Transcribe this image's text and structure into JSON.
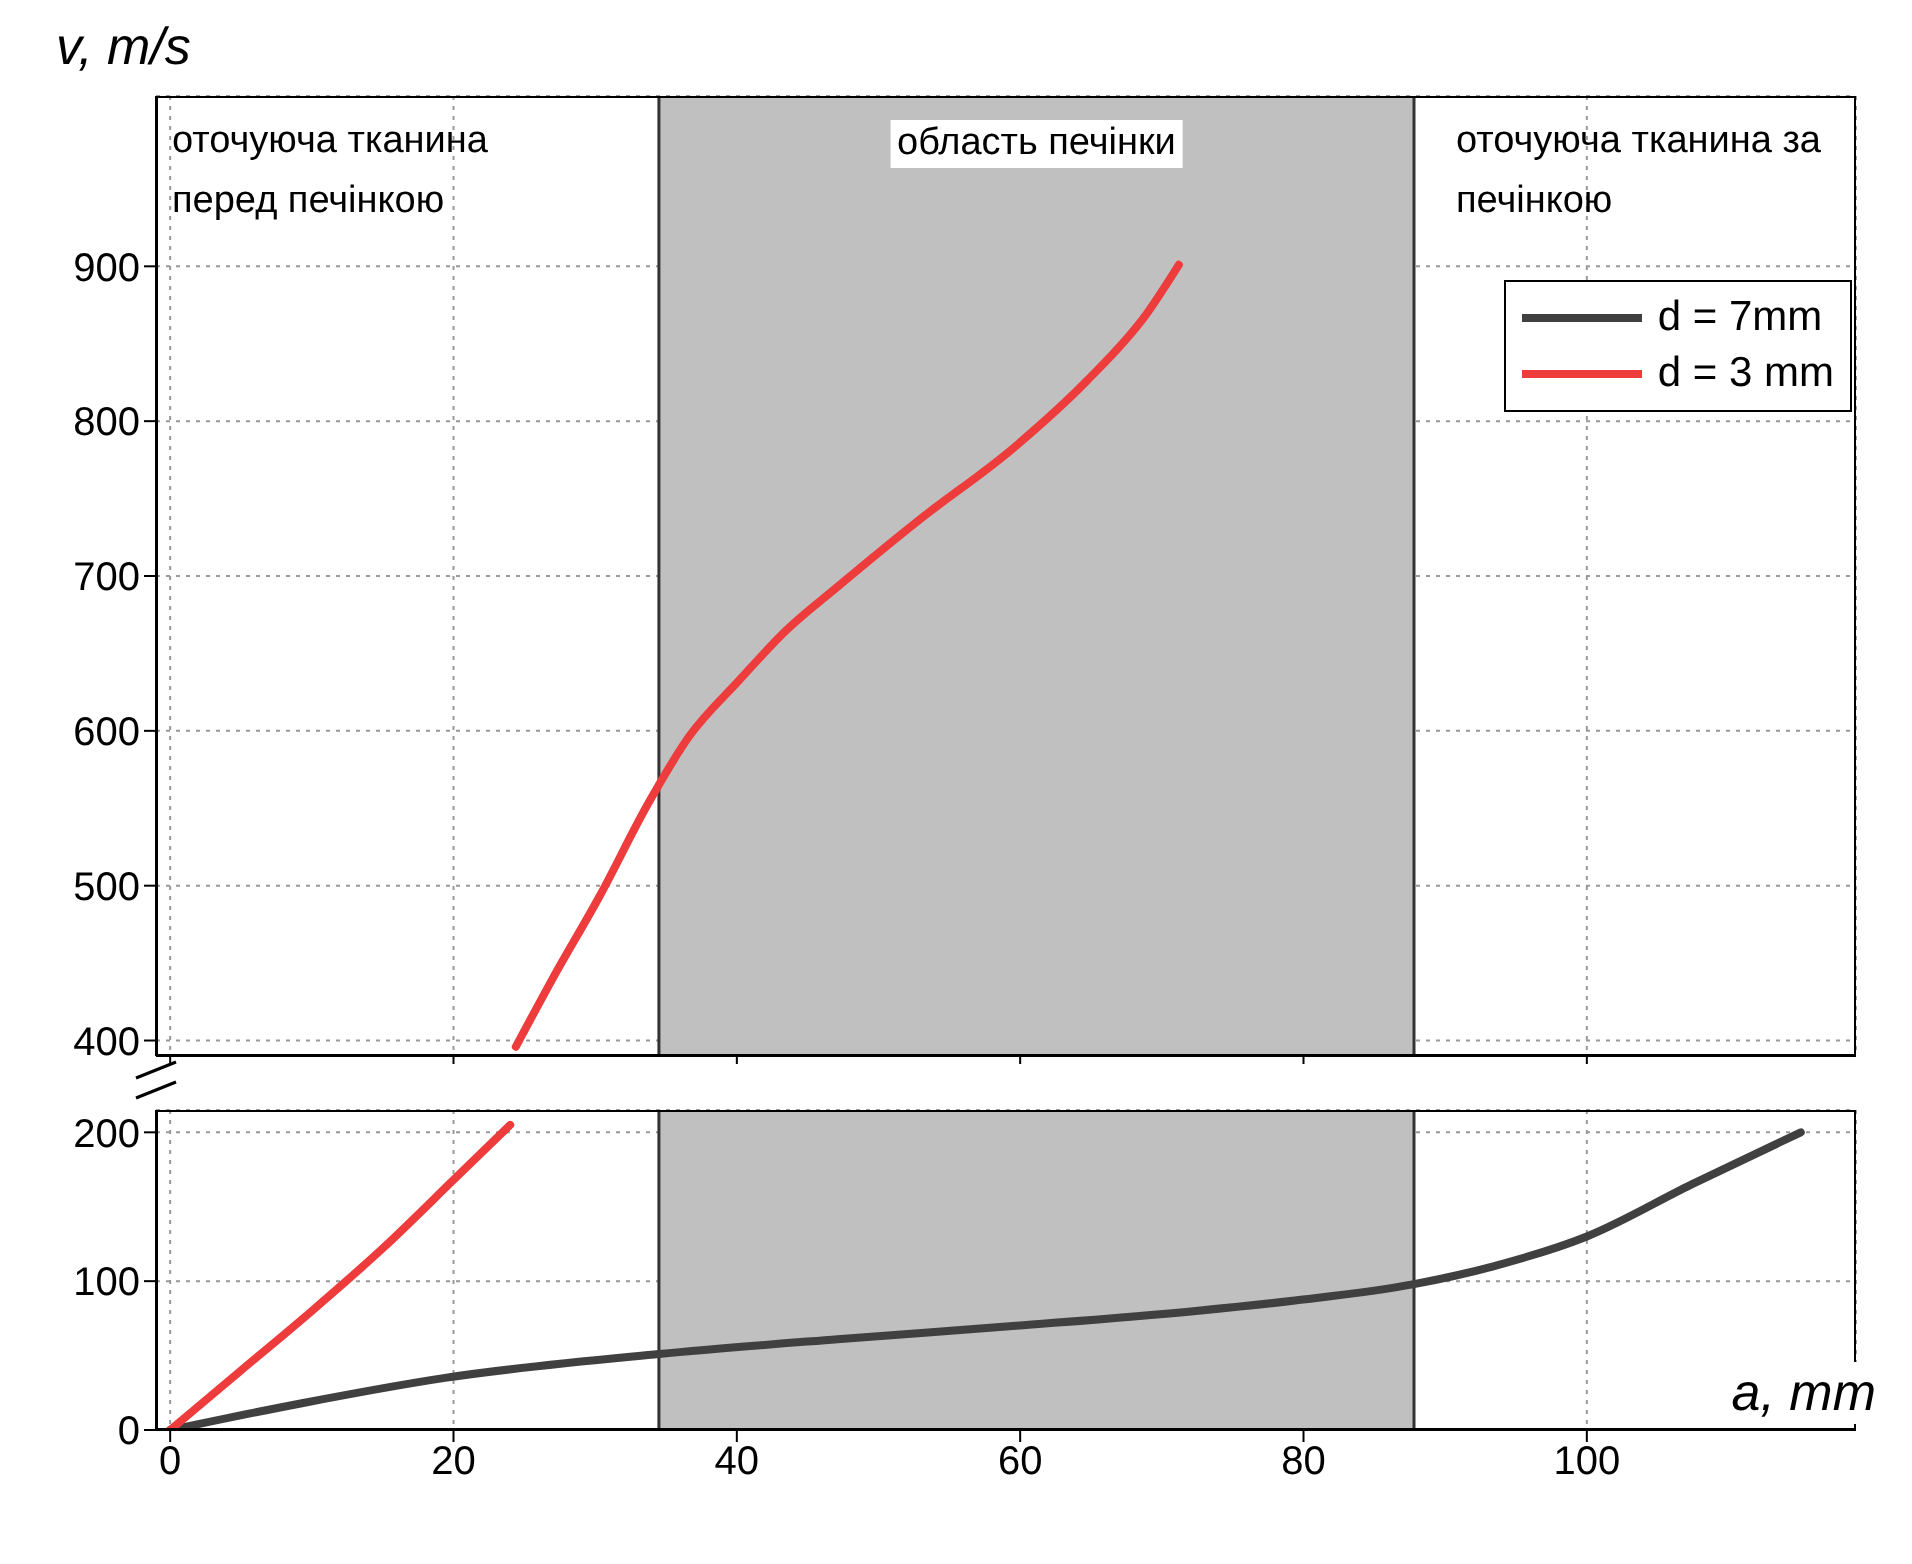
{
  "chart_data": [
    {
      "type": "line",
      "ylabel": "v, m/s",
      "xlim": [
        -1,
        119
      ],
      "xticks": [
        0,
        20,
        40,
        60,
        80,
        100
      ],
      "ylim": [
        390,
        1010
      ],
      "yticks": [
        400,
        500,
        600,
        700,
        800,
        900
      ],
      "tick_labels": "y",
      "grid": true,
      "bands": [
        {
          "axis": "x",
          "from": 34.5,
          "to": 87.8,
          "label": "область печінки",
          "color": "#c0c0c0"
        }
      ],
      "annotations": [
        "оточуюча тканина перед печінкою",
        "оточуюча тканина за печінкою"
      ],
      "series": [
        {
          "color": "#ee3b3b",
          "x": [
            24.4,
            27,
            30.3,
            33.8,
            36.6,
            40.1,
            43.5,
            47.1,
            52.7,
            59.7,
            64.7,
            68.9,
            71.2
          ],
          "values": [
            396,
            440,
            493,
            554,
            596,
            632,
            665,
            693,
            735,
            784,
            826,
            869,
            901
          ]
        }
      ]
    },
    {
      "type": "line",
      "xlabel": "a, mm",
      "xlim": [
        -1,
        119
      ],
      "xticks": [
        0,
        20,
        40,
        60,
        80,
        100
      ],
      "ylim": [
        0,
        215
      ],
      "yticks": [
        0,
        100,
        200
      ],
      "grid": true,
      "legend": "top right",
      "bands": [
        {
          "axis": "x",
          "from": 34.5,
          "to": 87.8,
          "color": "#c0c0c0"
        }
      ],
      "series": [
        {
          "name": "d = 7mm",
          "color": "#404040",
          "x": [
            0,
            9.3,
            19.4,
            34.5,
            47.1,
            59.7,
            72.4,
            79.4,
            87.8,
            93.4,
            100,
            107.4,
            115.1
          ],
          "values": [
            0,
            18,
            35,
            51,
            61,
            70,
            80,
            87,
            98,
            110,
            130,
            165,
            200
          ]
        },
        {
          "name": "d = 3 mm",
          "color": "#ee3b3b",
          "x": [
            0,
            5,
            10,
            15,
            20,
            24
          ],
          "values": [
            0,
            40,
            80,
            122,
            168,
            205
          ]
        }
      ]
    }
  ]
}
